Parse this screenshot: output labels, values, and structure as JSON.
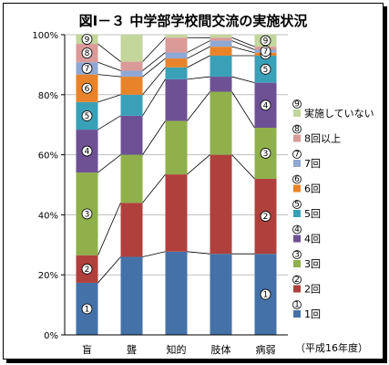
{
  "chart_data": {
    "type": "bar",
    "stacked": true,
    "normalized": true,
    "title": "図Ⅰ－３ 中学部学校間交流の実施状況",
    "note": "（平成16年度）",
    "categories": [
      "盲",
      "聾",
      "知的",
      "肢体",
      "病弱"
    ],
    "ylim": [
      0,
      100
    ],
    "ytick_labels": [
      "0%",
      "20%",
      "40%",
      "60%",
      "80%",
      "100%"
    ],
    "grid": true,
    "legend_position": "right",
    "series": [
      {
        "name": "1回",
        "marker": "①",
        "color": "#4472a8",
        "values": [
          17,
          26,
          28,
          27,
          27
        ]
      },
      {
        "name": "2回",
        "marker": "②",
        "color": "#b0403c",
        "values": [
          9,
          18,
          26,
          33,
          25
        ]
      },
      {
        "name": "3回",
        "marker": "③",
        "color": "#8fb04a",
        "values": [
          27,
          16,
          18,
          21,
          17
        ]
      },
      {
        "name": "4回",
        "marker": "④",
        "color": "#6e5195",
        "values": [
          14,
          13,
          14,
          5,
          15
        ]
      },
      {
        "name": "5回",
        "marker": "⑤",
        "color": "#3aa0b8",
        "values": [
          9,
          7,
          4,
          7,
          9
        ]
      },
      {
        "name": "6回",
        "marker": "⑥",
        "color": "#e8832a",
        "values": [
          9,
          6,
          3,
          3,
          1
        ]
      },
      {
        "name": "7回",
        "marker": "⑦",
        "color": "#8fa8d4",
        "values": [
          4,
          2,
          2,
          2,
          1
        ]
      },
      {
        "name": "8回以上",
        "marker": "⑧",
        "color": "#d99a98",
        "values": [
          6,
          3,
          5,
          1,
          1
        ]
      },
      {
        "name": "実施していない",
        "marker": "⑨",
        "color": "#c3d69b",
        "values": [
          3,
          9,
          1,
          1,
          4
        ]
      }
    ],
    "bar_markers": [
      {
        "category": "盲",
        "labels": [
          "①",
          "②",
          "③",
          "④",
          "⑤",
          "⑥",
          "⑦",
          "⑧",
          "⑨"
        ]
      },
      {
        "category": "病弱",
        "labels": [
          "①",
          "②",
          "③",
          "④",
          "⑤",
          "⑥",
          "⑦",
          "⑨"
        ]
      }
    ]
  }
}
